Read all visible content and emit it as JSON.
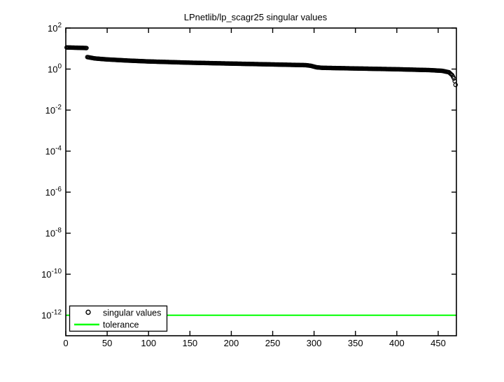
{
  "title": "LPnetlib/lp_scagr25 singular values",
  "colors": {
    "series": "#000000",
    "tolerance": "#00ff00",
    "axis": "#000000",
    "background": "#ffffff"
  },
  "legend": {
    "position": "bottom-left",
    "items": [
      {
        "label": "singular values",
        "marker": "open-circle",
        "color": "#000000"
      },
      {
        "label": "tolerance",
        "marker": "line",
        "color": "#00ff00"
      }
    ]
  },
  "chart_data": {
    "type": "scatter",
    "title": "LPnetlib/lp_scagr25 singular values",
    "xlabel": "",
    "ylabel": "",
    "grid": false,
    "legend_position": "bottom-left",
    "x_axis": {
      "min": 0,
      "max": 472,
      "ticks": [
        0,
        50,
        100,
        150,
        200,
        250,
        300,
        350,
        400,
        450
      ]
    },
    "y_axis": {
      "scale": "log10",
      "min_exponent": -13,
      "max_exponent": 2,
      "tick_exponents": [
        2,
        0,
        -2,
        -4,
        -6,
        -8,
        -10,
        -12
      ],
      "tick_mantissa": "10"
    },
    "series": [
      {
        "name": "singular values",
        "type": "scatter",
        "marker": "open-circle",
        "color": "#000000",
        "n_points": 471,
        "interpolation": "log-linear between anchor points",
        "anchor_points_index_value": [
          [
            1,
            11.3
          ],
          [
            12,
            11.0
          ],
          [
            25,
            10.6
          ],
          [
            26,
            3.85
          ],
          [
            35,
            3.3
          ],
          [
            50,
            2.95
          ],
          [
            75,
            2.6
          ],
          [
            100,
            2.35
          ],
          [
            150,
            2.05
          ],
          [
            200,
            1.85
          ],
          [
            250,
            1.68
          ],
          [
            290,
            1.55
          ],
          [
            296,
            1.45
          ],
          [
            303,
            1.22
          ],
          [
            310,
            1.15
          ],
          [
            350,
            1.07
          ],
          [
            400,
            0.98
          ],
          [
            440,
            0.89
          ],
          [
            455,
            0.82
          ],
          [
            463,
            0.7
          ],
          [
            467,
            0.5
          ],
          [
            469,
            0.35
          ],
          [
            470,
            0.26
          ],
          [
            471,
            0.17
          ]
        ]
      },
      {
        "name": "tolerance",
        "type": "hline",
        "color": "#00ff00",
        "value": 1e-12
      }
    ]
  }
}
